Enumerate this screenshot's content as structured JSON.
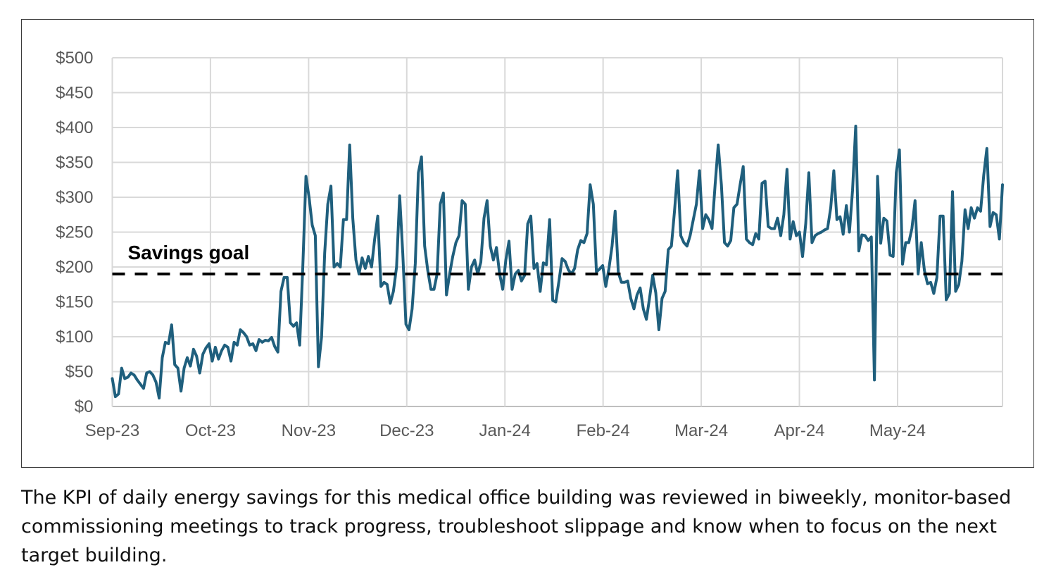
{
  "caption": "The KPI of daily energy savings for this medical office building was reviewed in biweekly, monitor-based commissioning meetings to track progress, troubleshoot slippage and know when to focus on the next target building.",
  "chart_data": {
    "type": "line",
    "title": "",
    "xlabel": "",
    "ylabel": "",
    "ylim": [
      0,
      500
    ],
    "yticks": [
      0,
      50,
      100,
      150,
      200,
      250,
      300,
      350,
      400,
      450,
      500
    ],
    "ytick_labels": [
      "$0",
      "$50",
      "$100",
      "$150",
      "$200",
      "$250",
      "$300",
      "$350",
      "$400",
      "$450",
      "$500"
    ],
    "xticks": [
      "Sep-23",
      "Oct-23",
      "Nov-23",
      "Dec-23",
      "Jan-24",
      "Feb-24",
      "Mar-24",
      "Apr-24",
      "May-24"
    ],
    "x_unit": "days since Sep-23",
    "days_span": 263,
    "grid": true,
    "line_color": "#1f5f7d",
    "goal": {
      "label": "Savings goal",
      "value": 190,
      "color": "#000000"
    },
    "series": [
      {
        "name": "Daily energy savings",
        "values": [
          40,
          14,
          18,
          55,
          40,
          42,
          48,
          45,
          38,
          32,
          26,
          48,
          50,
          45,
          35,
          12,
          70,
          92,
          90,
          117,
          60,
          55,
          22,
          55,
          70,
          58,
          82,
          72,
          48,
          75,
          84,
          90,
          65,
          85,
          68,
          80,
          88,
          85,
          65,
          92,
          88,
          110,
          106,
          100,
          88,
          90,
          80,
          96,
          92,
          95,
          94,
          99,
          86,
          78,
          165,
          185,
          185,
          120,
          115,
          120,
          88,
          200,
          330,
          300,
          260,
          245,
          57,
          100,
          220,
          290,
          316,
          200,
          205,
          200,
          268,
          268,
          375,
          270,
          210,
          190,
          213,
          198,
          215,
          200,
          240,
          273,
          172,
          178,
          175,
          148,
          165,
          200,
          302,
          220,
          118,
          110,
          140,
          205,
          335,
          358,
          230,
          195,
          168,
          168,
          190,
          290,
          306,
          160,
          190,
          215,
          235,
          245,
          295,
          290,
          168,
          200,
          210,
          190,
          207,
          270,
          295,
          230,
          210,
          228,
          190,
          168,
          210,
          237,
          168,
          190,
          195,
          180,
          188,
          262,
          273,
          198,
          205,
          165,
          206,
          203,
          268,
          152,
          150,
          180,
          212,
          208,
          196,
          190,
          198,
          225,
          238,
          235,
          248,
          318,
          290,
          193,
          197,
          202,
          172,
          198,
          230,
          280,
          192,
          178,
          178,
          180,
          155,
          140,
          160,
          170,
          140,
          125,
          155,
          188,
          163,
          110,
          155,
          165,
          225,
          230,
          280,
          338,
          245,
          235,
          230,
          245,
          268,
          290,
          338,
          255,
          275,
          268,
          255,
          318,
          375,
          318,
          235,
          230,
          238,
          285,
          290,
          318,
          344,
          240,
          235,
          232,
          248,
          240,
          320,
          323,
          258,
          255,
          255,
          270,
          245,
          275,
          340,
          240,
          265,
          245,
          250,
          215,
          262,
          335,
          235,
          245,
          248,
          250,
          253,
          255,
          285,
          338,
          268,
          272,
          247,
          288,
          250,
          310,
          402,
          223,
          246,
          245,
          238,
          243,
          38,
          330,
          234,
          270,
          266,
          217,
          215,
          335,
          368,
          204,
          235,
          235,
          255,
          295,
          190,
          235,
          195,
          176,
          178,
          162,
          185,
          273,
          273,
          153,
          162,
          308,
          165,
          175,
          208,
          282,
          255,
          285,
          270,
          285,
          280,
          332,
          370,
          258,
          278,
          275,
          240,
          318
        ]
      }
    ]
  }
}
